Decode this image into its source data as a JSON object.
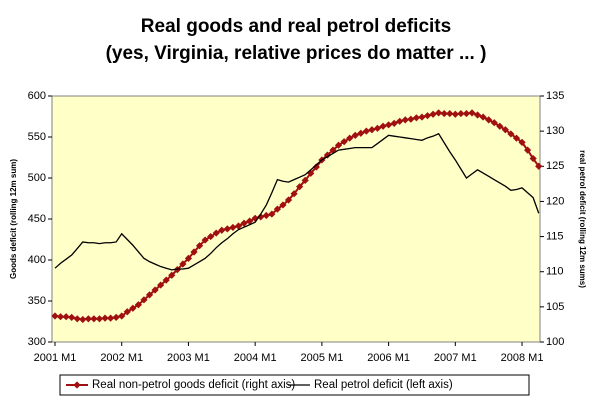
{
  "chart_data": {
    "type": "line",
    "title": "Real goods and real petrol deficits",
    "subtitle": "(yes, Virginia, relative prices do matter ... )",
    "y_label": "Goods deficit (rolling 12m sum)",
    "y2_label": "real petrol deficit (rolling 12m sums)",
    "categories": [
      "2001 M1",
      null,
      null,
      null,
      null,
      null,
      null,
      null,
      null,
      null,
      null,
      null,
      "2002 M1",
      null,
      null,
      null,
      null,
      null,
      null,
      null,
      null,
      null,
      null,
      null,
      "2003 M1",
      null,
      null,
      null,
      null,
      null,
      null,
      null,
      null,
      null,
      null,
      null,
      "2004 M1",
      null,
      null,
      null,
      null,
      null,
      null,
      null,
      null,
      null,
      null,
      null,
      "2005 M1",
      null,
      null,
      null,
      null,
      null,
      null,
      null,
      null,
      null,
      null,
      null,
      "2006 M1",
      null,
      null,
      null,
      null,
      null,
      null,
      null,
      null,
      null,
      null,
      null,
      "2007 M1",
      null,
      null,
      null,
      null,
      null,
      null,
      null,
      null,
      null,
      null,
      null,
      "2008 M1",
      null,
      null,
      null
    ],
    "series": [
      {
        "name": "Real non-petrol goods deficit (right axis)",
        "color": "#a01010",
        "axis": "y2",
        "marker": "diamond",
        "values": [
          103.7,
          103.6,
          103.6,
          103.5,
          103.3,
          103.2,
          103.3,
          103.3,
          103.3,
          103.4,
          103.4,
          103.5,
          103.7,
          104.3,
          104.8,
          105.3,
          106.0,
          106.7,
          107.4,
          108.1,
          108.8,
          109.5,
          110.3,
          111.1,
          111.9,
          112.8,
          113.7,
          114.5,
          115.0,
          115.5,
          115.9,
          116.1,
          116.3,
          116.5,
          116.9,
          117.2,
          117.6,
          117.8,
          118.0,
          118.2,
          118.9,
          119.5,
          120.2,
          121.1,
          122.1,
          123.0,
          124.0,
          124.9,
          125.9,
          126.6,
          127.3,
          128.0,
          128.5,
          129.0,
          129.4,
          129.7,
          130.0,
          130.2,
          130.4,
          130.7,
          130.9,
          131.1,
          131.4,
          131.6,
          131.7,
          131.9,
          132.0,
          132.2,
          132.4,
          132.6,
          132.5,
          132.5,
          132.4,
          132.5,
          132.5,
          132.6,
          132.3,
          132.0,
          131.6,
          131.2,
          130.7,
          130.2,
          129.6,
          129.0,
          128.4,
          127.3,
          126.1,
          125.0
        ]
      },
      {
        "name": "Real petrol deficit (left axis)",
        "color": "#000000",
        "axis": "y",
        "values": [
          390,
          396,
          401,
          406,
          414,
          422,
          421,
          421,
          420,
          421,
          421,
          422,
          432,
          425,
          418,
          410,
          402,
          398,
          395,
          392,
          390,
          388,
          389,
          389,
          390,
          394,
          398,
          402,
          408,
          415,
          421,
          426,
          432,
          437,
          440,
          443,
          446,
          456,
          467,
          482,
          498,
          496,
          495,
          498,
          501,
          504,
          510,
          516,
          522,
          526,
          530,
          534,
          535,
          536,
          537,
          537,
          537,
          537,
          542,
          547,
          552,
          551,
          550,
          549,
          548,
          547,
          546,
          549,
          551,
          554,
          543,
          532,
          522,
          511,
          500,
          505,
          510,
          506,
          502,
          498,
          494,
          490,
          485,
          486,
          488,
          482,
          476,
          457
        ]
      }
    ],
    "ylim": [
      300,
      600
    ],
    "yticks": [
      300,
      350,
      400,
      450,
      500,
      550,
      600
    ],
    "y2lim": [
      100,
      135
    ],
    "y2ticks": [
      100,
      105,
      110,
      115,
      120,
      125,
      130,
      135
    ],
    "plot_background": "#ffffc8",
    "legend": "bottom"
  }
}
